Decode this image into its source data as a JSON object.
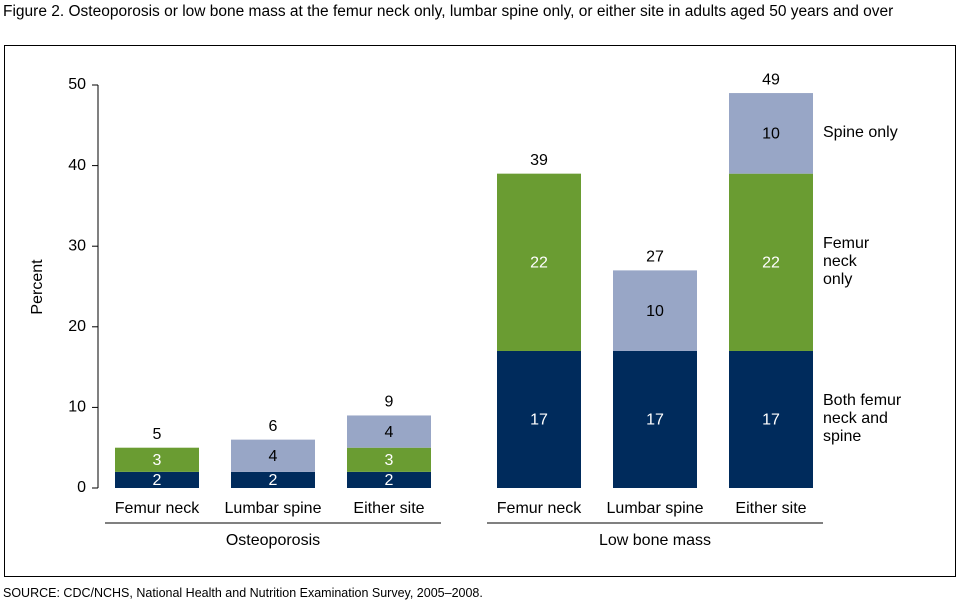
{
  "chart_data": {
    "type": "stacked-bar",
    "title": "Figure 2. Osteoporosis or low bone mass at the femur neck only, lumbar spine only, or either site in adults aged 50 years and over",
    "y_label": "Percent",
    "source": "SOURCE: CDC/NCHS, National Health and Nutrition Examination Survey, 2005–2008.",
    "groups": [
      {
        "label": "Osteoporosis",
        "categories": [
          "Femur neck",
          "Lumbar spine",
          "Either site"
        ]
      },
      {
        "label": "Low bone mass",
        "categories": [
          "Femur neck",
          "Lumbar spine",
          "Either site"
        ]
      }
    ],
    "series": [
      {
        "name": "Both femur neck and spine",
        "color": "#002b5c",
        "label_color": "#ffffff",
        "values": [
          2,
          2,
          2,
          17,
          17,
          17
        ]
      },
      {
        "name": "Femur neck only",
        "color": "#6a9c32",
        "label_color": "#ffffff",
        "values": [
          3,
          null,
          3,
          22,
          null,
          22
        ]
      },
      {
        "name": "Spine only",
        "color": "#98a6c6",
        "label_color": "#000000",
        "values": [
          null,
          4,
          4,
          null,
          10,
          10
        ]
      }
    ],
    "totals": [
      5,
      6,
      9,
      39,
      27,
      49
    ],
    "ylim": [
      0,
      50
    ],
    "yticks": [
      0,
      10,
      20,
      30,
      40,
      50
    ],
    "grid": false
  }
}
